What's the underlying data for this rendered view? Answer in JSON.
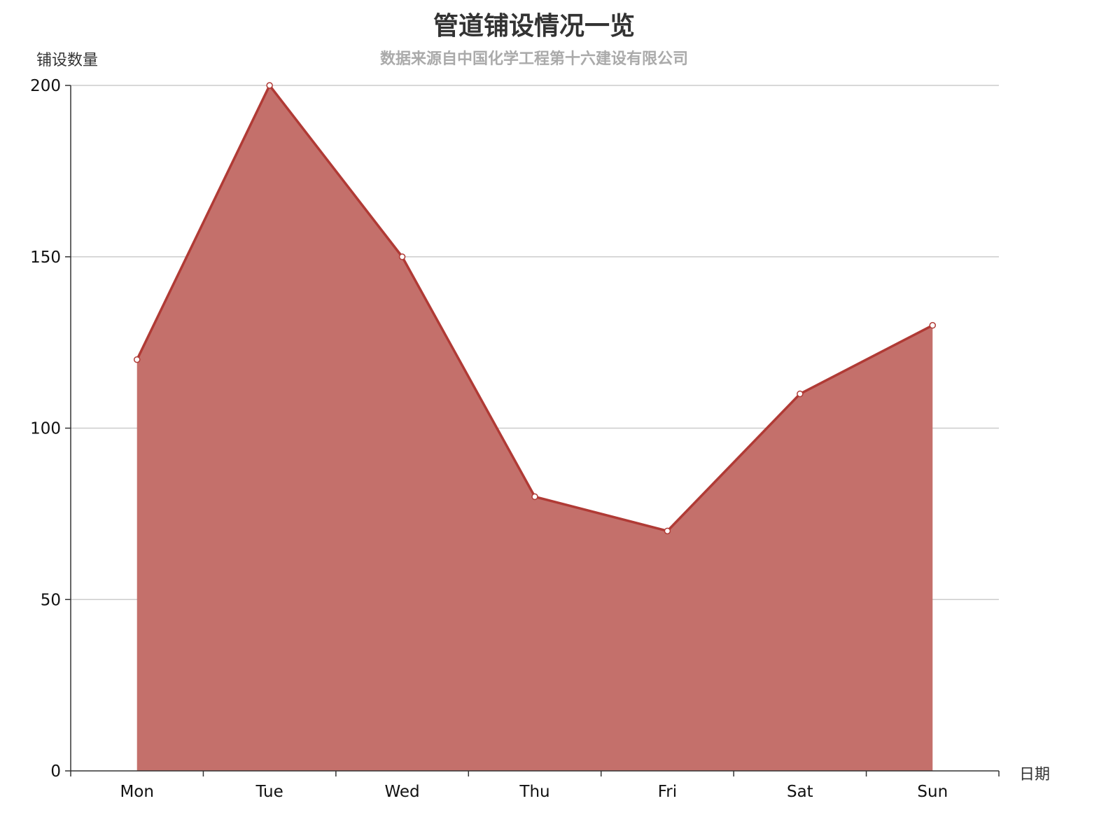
{
  "chart_data": {
    "type": "area",
    "title": "管道铺设情况一览",
    "subtitle": "数据来源自中国化学工程第十六建设有限公司",
    "xlabel": "日期",
    "ylabel": "铺设数量",
    "categories": [
      "Mon",
      "Tue",
      "Wed",
      "Thu",
      "Fri",
      "Sat",
      "Sun"
    ],
    "series": [
      {
        "values": [
          120,
          200,
          150,
          80,
          70,
          110,
          130
        ]
      }
    ],
    "ylim": [
      0,
      200
    ],
    "yticks": [
      0,
      50,
      100,
      150,
      200
    ],
    "grid": true,
    "colors": {
      "line": "#b03a35",
      "area": "#c4706b",
      "grid": "#cccccc",
      "axis": "#333333"
    }
  }
}
